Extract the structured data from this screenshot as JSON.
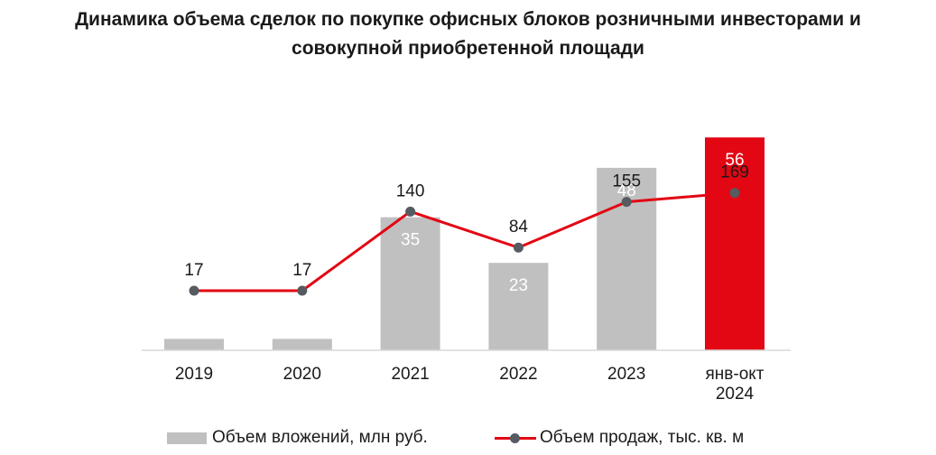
{
  "title_line1": "Динамика объема сделок по покупке офисных блоков розничными инвесторами и",
  "title_line2": "совокупной приобретенной площади",
  "chart_data": {
    "type": "bar+line",
    "categories": [
      "2019",
      "2020",
      "2021",
      "2022",
      "2023",
      "янв-окт|2024"
    ],
    "series": [
      {
        "name": "Объем вложений, млн руб.",
        "type": "bar",
        "values": [
          3,
          3,
          35,
          23,
          48,
          56
        ],
        "labels": [
          "",
          "",
          "35",
          "23",
          "48",
          "56"
        ],
        "colors": [
          "#c0c0c0",
          "#c0c0c0",
          "#c0c0c0",
          "#c0c0c0",
          "#c0c0c0",
          "#e30613"
        ]
      },
      {
        "name": "Объем продаж, тыс. кв. м",
        "type": "line",
        "values": [
          17,
          17,
          140,
          84,
          155,
          169
        ],
        "labels": [
          "17",
          "17",
          "140",
          "84",
          "155",
          "169"
        ],
        "color": "#e30613",
        "marker_color": "#555b61"
      }
    ],
    "legend_position": "bottom",
    "grid": false
  }
}
